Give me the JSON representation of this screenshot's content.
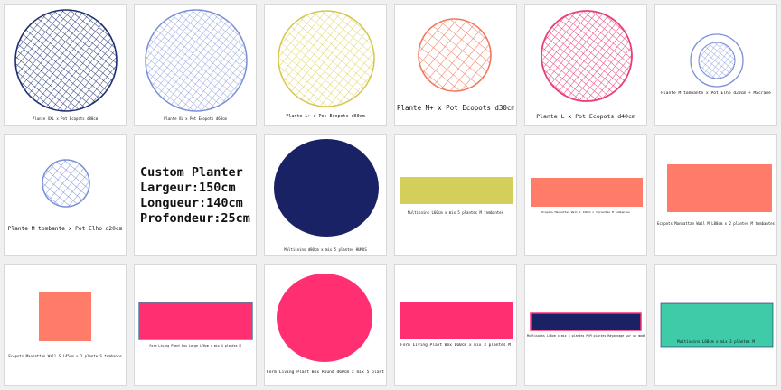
{
  "tiles": [
    {
      "caption": "Plante XXL x Pot Ecopots d80cm",
      "color": "#1f2e6e"
    },
    {
      "caption": "Plante XL x Pot Ecopots d60cm",
      "color": "#7c8fd6"
    },
    {
      "caption": "Plante L+ x Pot Ecopots d60cm",
      "color": "#d4c74a"
    },
    {
      "caption": "Plante M+ x Pot Ecopots d30cm",
      "color": "#f07a5e"
    },
    {
      "caption": "Plante L x Pot Ecopots d40cm",
      "color": "#ea3f78"
    },
    {
      "caption": "Plante M tombante x Pot Elho d20cm + Macramé",
      "color": "#7c8fd6"
    },
    {
      "caption": "Plante M tombante x Pot Elho d20cm",
      "color": "#7c8fd6"
    },
    {
      "caption": "",
      "color": "#111111"
    },
    {
      "caption": "Multisoins d80cm x mix 5 plantes HUMUS",
      "color": "#1a2266"
    },
    {
      "caption": "Multisoins L60cm x mix 5 plantes M tombantes",
      "color": "#d4cf5a"
    },
    {
      "caption": "Ecopots Manhattan Wall L 140cm x 3 plantes M tombantes",
      "color": "#ff7d68"
    },
    {
      "caption": "Ecopots Manhattan Wall M L80cm x 2 plantes M tombantes",
      "color": "#ff7d68"
    },
    {
      "caption": "Ecopots Manhattan Wall S L45cm x 2 plante S tombante",
      "color": "#ff7d68"
    },
    {
      "caption": "Form Living Plant Box Large L70cm x mix 4 plantes M",
      "color": "#ff2f72"
    },
    {
      "caption": "Form Living Plant Box Round d60cm x mix 5 plantes M",
      "color": "#ff2f72"
    },
    {
      "caption": "Form Living Plant Box L60cm x mix 3 plantes M",
      "color": "#ff2f72"
    },
    {
      "caption": "Multisoins L40cm x mix 5 plantes M/M plantes Rayonnage sur un modèle",
      "color": "#1a2266"
    },
    {
      "caption": "Multisoins L60cm x mix 3 plantes M",
      "color": "#3fcaa8"
    }
  ],
  "custom": {
    "line1": "Custom Planter",
    "line2": "Largeur:150cm",
    "line3": "Longueur:140cm",
    "line4": "Profondeur:25cm"
  }
}
